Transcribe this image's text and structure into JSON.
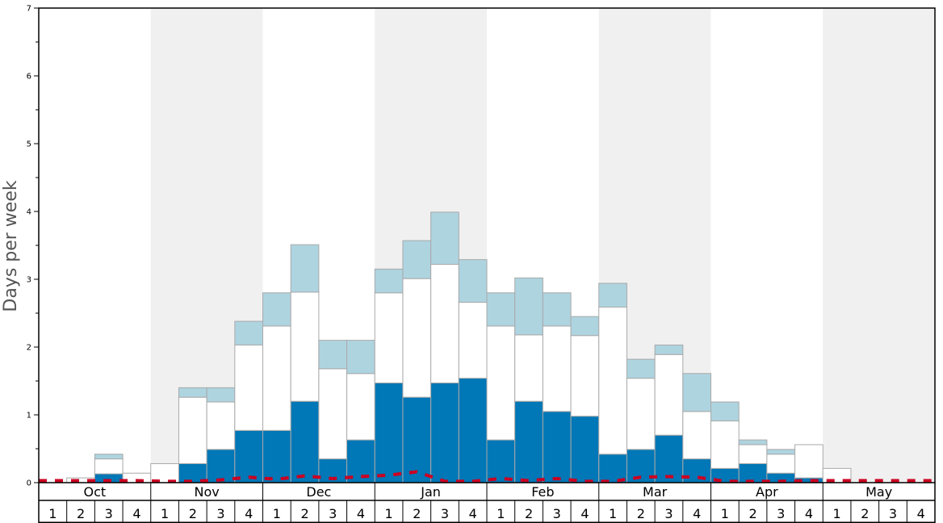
{
  "chart_data": {
    "type": "bar",
    "ylabel": "Days per week",
    "ylim": [
      0,
      7
    ],
    "yticks": [
      "0",
      "1",
      "2",
      "3",
      "4",
      "5",
      "6",
      "7"
    ],
    "months": [
      "Oct",
      "Nov",
      "Dec",
      "Jan",
      "Feb",
      "Mar",
      "Apr",
      "May"
    ],
    "weeks": [
      "1",
      "2",
      "3",
      "4"
    ],
    "shaded_months": [
      "Nov",
      "Jan",
      "Mar",
      "May"
    ],
    "stacked": true,
    "series": [
      {
        "color": "#0077b6",
        "values": [
          0,
          0,
          0.13,
          0,
          0,
          0.28,
          0.49,
          0.77,
          0.77,
          1.2,
          0.35,
          0.63,
          1.47,
          1.26,
          1.47,
          1.54,
          0.63,
          1.2,
          1.05,
          0.98,
          0.42,
          0.49,
          0.7,
          0.35,
          0.21,
          0.28,
          0.14,
          0.07,
          0,
          0,
          0,
          0
        ]
      },
      {
        "color": "#ffffff",
        "values": [
          0,
          0.07,
          0.22,
          0.14,
          0.28,
          0.98,
          0.7,
          1.26,
          1.54,
          1.61,
          1.33,
          0.98,
          1.33,
          1.75,
          1.75,
          1.12,
          1.68,
          0.98,
          1.26,
          1.19,
          2.17,
          1.05,
          1.19,
          0.7,
          0.7,
          0.28,
          0.28,
          0.49,
          0.21,
          0,
          0,
          0
        ]
      },
      {
        "color": "#aed4e0",
        "values": [
          0,
          0,
          0.07,
          0,
          0,
          0.14,
          0.21,
          0.35,
          0.49,
          0.7,
          0.42,
          0.49,
          0.35,
          0.56,
          0.77,
          0.63,
          0.49,
          0.84,
          0.49,
          0.28,
          0.35,
          0.28,
          0.14,
          0.56,
          0.28,
          0.07,
          0.07,
          0,
          0,
          0,
          0,
          0
        ]
      }
    ],
    "reference_line": {
      "style": "dashed",
      "color": "#cc0022",
      "values": [
        0.03,
        0.03,
        0.03,
        0.03,
        0.02,
        0.02,
        0.04,
        0.08,
        0.05,
        0.1,
        0.06,
        0.09,
        0.11,
        0.16,
        0.02,
        0.02,
        0.06,
        0.03,
        0.06,
        0.02,
        0.02,
        0.08,
        0.09,
        0.08,
        0.02,
        0.02,
        0.02,
        0.03,
        0.03,
        0.03,
        0.03,
        0.03
      ]
    }
  }
}
